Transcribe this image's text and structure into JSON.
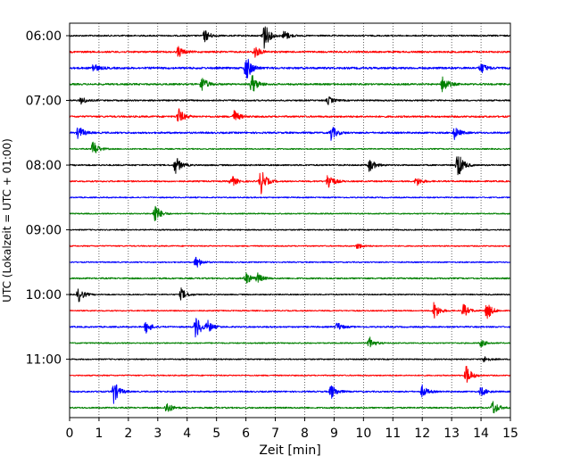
{
  "chart_data": {
    "type": "line",
    "title": "",
    "xlabel": "Zeit  [min]",
    "ylabel": "UTC (Lokalzeit = UTC + 01:00)",
    "xlim": [
      0,
      15
    ],
    "x_ticks": [
      "0",
      "1",
      "2",
      "3",
      "4",
      "5",
      "6",
      "7",
      "8",
      "9",
      "10",
      "11",
      "12",
      "13",
      "14",
      "15"
    ],
    "y_ticks": [
      "06:00",
      "07:00",
      "08:00",
      "09:00",
      "10:00",
      "11:00"
    ],
    "grid": "vertical dotted",
    "trace_interval_minutes": 15,
    "trace_colors": [
      "#000000",
      "#ff0000",
      "#0000ff",
      "#008000"
    ],
    "traces": [
      {
        "start": "06:00",
        "color": "#000000",
        "noise": 0.5,
        "events": [
          [
            4.6,
            0.8
          ],
          [
            6.6,
            2.0
          ],
          [
            7.3,
            0.7
          ]
        ]
      },
      {
        "start": "06:15",
        "color": "#ff0000",
        "noise": 0.6,
        "events": [
          [
            3.7,
            0.7
          ],
          [
            6.3,
            0.8
          ]
        ]
      },
      {
        "start": "06:30",
        "color": "#0000ff",
        "noise": 0.7,
        "events": [
          [
            0.8,
            0.6
          ],
          [
            6.0,
            1.8
          ],
          [
            14.0,
            0.7
          ]
        ]
      },
      {
        "start": "06:45",
        "color": "#008000",
        "noise": 0.6,
        "events": [
          [
            4.5,
            1.0
          ],
          [
            6.2,
            1.3
          ],
          [
            12.7,
            1.2
          ]
        ]
      },
      {
        "start": "07:00",
        "color": "#000000",
        "noise": 0.5,
        "events": [
          [
            0.4,
            0.5
          ],
          [
            8.8,
            0.5
          ]
        ]
      },
      {
        "start": "07:15",
        "color": "#ff0000",
        "noise": 0.6,
        "events": [
          [
            3.7,
            1.1
          ],
          [
            5.6,
            0.8
          ]
        ]
      },
      {
        "start": "07:30",
        "color": "#0000ff",
        "noise": 0.6,
        "events": [
          [
            0.3,
            0.9
          ],
          [
            8.9,
            1.0
          ],
          [
            13.1,
            0.8
          ]
        ]
      },
      {
        "start": "07:45",
        "color": "#008000",
        "noise": 0.4,
        "events": [
          [
            0.8,
            1.1
          ]
        ]
      },
      {
        "start": "08:00",
        "color": "#000000",
        "noise": 0.5,
        "events": [
          [
            3.6,
            1.2
          ],
          [
            10.2,
            0.9
          ],
          [
            13.2,
            1.9
          ]
        ]
      },
      {
        "start": "08:15",
        "color": "#ff0000",
        "noise": 0.5,
        "events": [
          [
            5.5,
            0.8
          ],
          [
            6.5,
            1.7
          ],
          [
            8.8,
            1.2
          ],
          [
            11.8,
            0.6
          ]
        ]
      },
      {
        "start": "08:30",
        "color": "#0000ff",
        "noise": 0.4,
        "events": []
      },
      {
        "start": "08:45",
        "color": "#008000",
        "noise": 0.4,
        "events": [
          [
            2.9,
            1.4
          ]
        ]
      },
      {
        "start": "09:00",
        "color": "#000000",
        "noise": 0.4,
        "events": []
      },
      {
        "start": "09:15",
        "color": "#ff0000",
        "noise": 0.4,
        "events": [
          [
            9.8,
            0.4
          ]
        ]
      },
      {
        "start": "09:30",
        "color": "#0000ff",
        "noise": 0.4,
        "events": [
          [
            4.3,
            0.8
          ]
        ]
      },
      {
        "start": "09:45",
        "color": "#008000",
        "noise": 0.5,
        "events": [
          [
            6.0,
            0.8
          ],
          [
            6.4,
            0.6
          ]
        ]
      },
      {
        "start": "10:00",
        "color": "#000000",
        "noise": 0.4,
        "events": [
          [
            0.3,
            1.0
          ],
          [
            3.8,
            0.8
          ]
        ]
      },
      {
        "start": "10:15",
        "color": "#ff0000",
        "noise": 0.4,
        "events": [
          [
            12.4,
            1.2
          ],
          [
            13.4,
            0.9
          ],
          [
            14.2,
            1.2
          ]
        ]
      },
      {
        "start": "10:30",
        "color": "#0000ff",
        "noise": 0.5,
        "events": [
          [
            2.6,
            0.8
          ],
          [
            4.3,
            1.6
          ],
          [
            4.7,
            0.7
          ],
          [
            9.1,
            0.6
          ]
        ]
      },
      {
        "start": "10:45",
        "color": "#008000",
        "noise": 0.4,
        "events": [
          [
            10.2,
            0.8
          ],
          [
            14.0,
            0.5
          ]
        ]
      },
      {
        "start": "11:00",
        "color": "#000000",
        "noise": 0.4,
        "events": [
          [
            14.1,
            0.4
          ]
        ]
      },
      {
        "start": "11:15",
        "color": "#ff0000",
        "noise": 0.4,
        "events": [
          [
            13.5,
            1.3
          ]
        ]
      },
      {
        "start": "11:30",
        "color": "#0000ff",
        "noise": 0.5,
        "events": [
          [
            1.5,
            1.5
          ],
          [
            8.9,
            1.0
          ],
          [
            12.0,
            0.8
          ],
          [
            14.0,
            0.6
          ]
        ]
      },
      {
        "start": "11:45",
        "color": "#008000",
        "noise": 0.5,
        "events": [
          [
            3.3,
            0.8
          ],
          [
            14.4,
            1.0
          ]
        ]
      }
    ]
  }
}
